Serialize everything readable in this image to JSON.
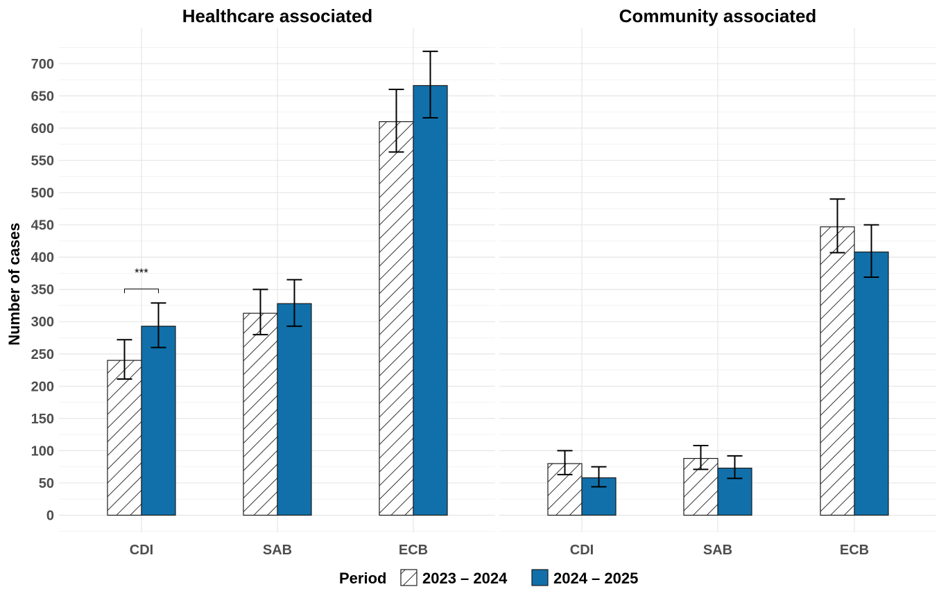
{
  "chart_data": {
    "type": "bar",
    "ylabel": "Number of cases",
    "ylim": [
      -25,
      740
    ],
    "yticks": [
      0,
      50,
      100,
      150,
      200,
      250,
      300,
      350,
      400,
      450,
      500,
      550,
      600,
      650,
      700
    ],
    "grid": true,
    "legend": {
      "position": "bottom",
      "title": "Period",
      "entries": [
        {
          "label": "2023 – 2024",
          "fill": "hatched",
          "color": "#ffffff"
        },
        {
          "label": "2024 – 2025",
          "fill": "solid",
          "color": "#1170aa"
        }
      ]
    },
    "facets": [
      {
        "title": "Healthcare associated",
        "categories": [
          "CDI",
          "SAB",
          "ECB"
        ],
        "series": [
          {
            "name": "2023 – 2024",
            "values": [
              240,
              313,
              610
            ],
            "error_low": [
              211,
              280,
              563
            ],
            "error_high": [
              272,
              350,
              660
            ]
          },
          {
            "name": "2024 – 2025",
            "values": [
              293,
              328,
              666
            ],
            "error_low": [
              260,
              293,
              616
            ],
            "error_high": [
              329,
              365,
              719
            ]
          }
        ],
        "annotations": [
          {
            "category": "CDI",
            "text": "***"
          }
        ]
      },
      {
        "title": "Community associated",
        "categories": [
          "CDI",
          "SAB",
          "ECB"
        ],
        "series": [
          {
            "name": "2023 – 2024",
            "values": [
              80,
              88,
              447
            ],
            "error_low": [
              63,
              71,
              407
            ],
            "error_high": [
              100,
              108,
              490
            ]
          },
          {
            "name": "2024 – 2025",
            "values": [
              58,
              73,
              408
            ],
            "error_low": [
              44,
              57,
              369
            ],
            "error_high": [
              75,
              92,
              450
            ]
          }
        ],
        "annotations": []
      }
    ]
  }
}
